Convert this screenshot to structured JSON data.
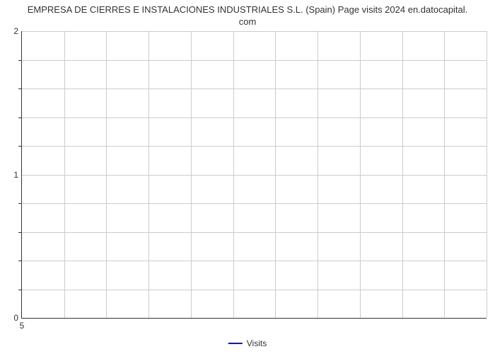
{
  "chart": {
    "type": "line",
    "title_line1": "EMPRESA DE CIERRES E INSTALACIONES INDUSTRIALES S.L. (Spain) Page visits 2024 en.datocapital.",
    "title_line2": "com",
    "title_fontsize": 13,
    "title_color": "#333333",
    "background_color": "#ffffff",
    "grid_color": "#cccccc",
    "axis_color": "#333333",
    "y_axis": {
      "min": 0,
      "max": 2,
      "major_ticks": [
        0,
        1,
        2
      ],
      "minor_ticks_per_major": 5,
      "label_fontsize": 12
    },
    "x_axis": {
      "ticks": [
        5
      ],
      "grid_columns": 11,
      "label_fontsize": 12
    },
    "grid_rows": 10,
    "legend": {
      "label": "Visits",
      "color": "#0000ff",
      "line_width": 2,
      "fontsize": 12
    },
    "series": []
  }
}
